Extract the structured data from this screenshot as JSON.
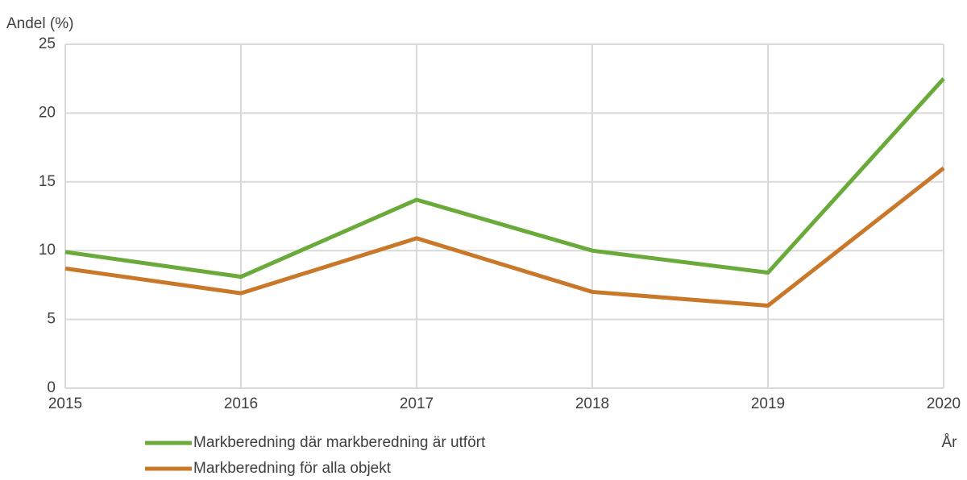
{
  "chart_data": {
    "type": "line",
    "y_label": "Andel (%)",
    "x_label": "År",
    "x": [
      2015,
      2016,
      2017,
      2018,
      2019,
      2020
    ],
    "series": [
      {
        "name": "Markberedning där markberedning är utfört",
        "color": "#6aaa3a",
        "values": [
          9.9,
          8.1,
          13.7,
          10.0,
          8.4,
          22.5
        ]
      },
      {
        "name": "Markberedning för alla objekt",
        "color": "#c9782a",
        "values": [
          8.7,
          6.9,
          10.9,
          7.0,
          6.0,
          16.0
        ]
      }
    ],
    "xlim": [
      2015,
      2020
    ],
    "xticks": [
      2015,
      2016,
      2017,
      2018,
      2019,
      2020
    ],
    "ylim": [
      0,
      25
    ],
    "yticks": [
      0,
      5,
      10,
      15,
      20,
      25
    ],
    "grid": true
  }
}
